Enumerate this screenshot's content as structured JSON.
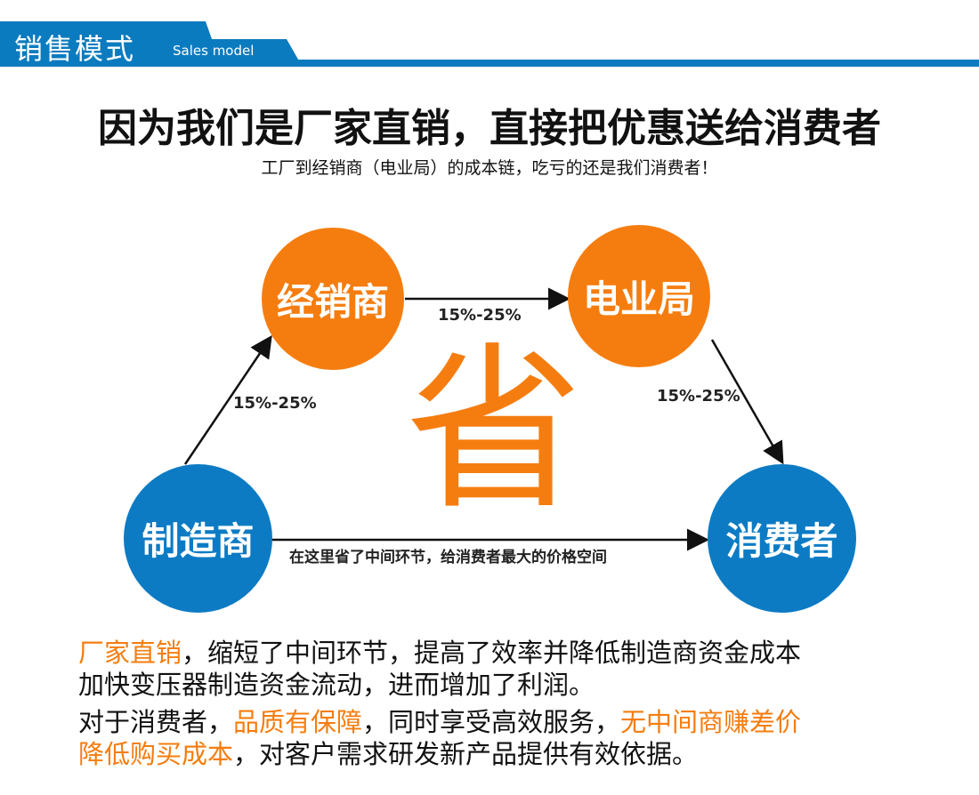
{
  "header": {
    "title": "销售模式",
    "subtitle": "Sales model",
    "color": "#0b7bbf"
  },
  "headline": "因为我们是厂家直销，直接把优惠送给消费者",
  "subheadline": "工厂到经销商（电业局）的成本链，吃亏的还是我们消费者！",
  "diagram": {
    "nodes": {
      "dealer": "经销商",
      "power_bureau": "电业局",
      "manufacturer": "制造商",
      "consumer": "消费者"
    },
    "edges": {
      "manufacturer_to_dealer": "15%-25%",
      "dealer_to_power_bureau": "15%-25%",
      "power_bureau_to_consumer": "15%-25%",
      "manufacturer_to_consumer": "在这里省了中间环节，给消费者最大的价格空间"
    },
    "center_char": "省",
    "colors": {
      "orange": "#f57d0f",
      "blue": "#0c7bc4"
    }
  },
  "paragraphs": {
    "p1": {
      "h1": "厂家直销",
      "t1": "，缩短了中间环节，提高了效率并降低制造商资金成本",
      "t2": "加快变压器制造资金流动，进而增加了利润。"
    },
    "p2": {
      "t1": "对于消费者，",
      "h1": "品质有保障",
      "t2": "，同时享受高效服务，",
      "h2": "无中间商赚差价",
      "h3": "降低购买成本",
      "t3": "，对客户需求研发新产品提供有效依据。"
    }
  }
}
